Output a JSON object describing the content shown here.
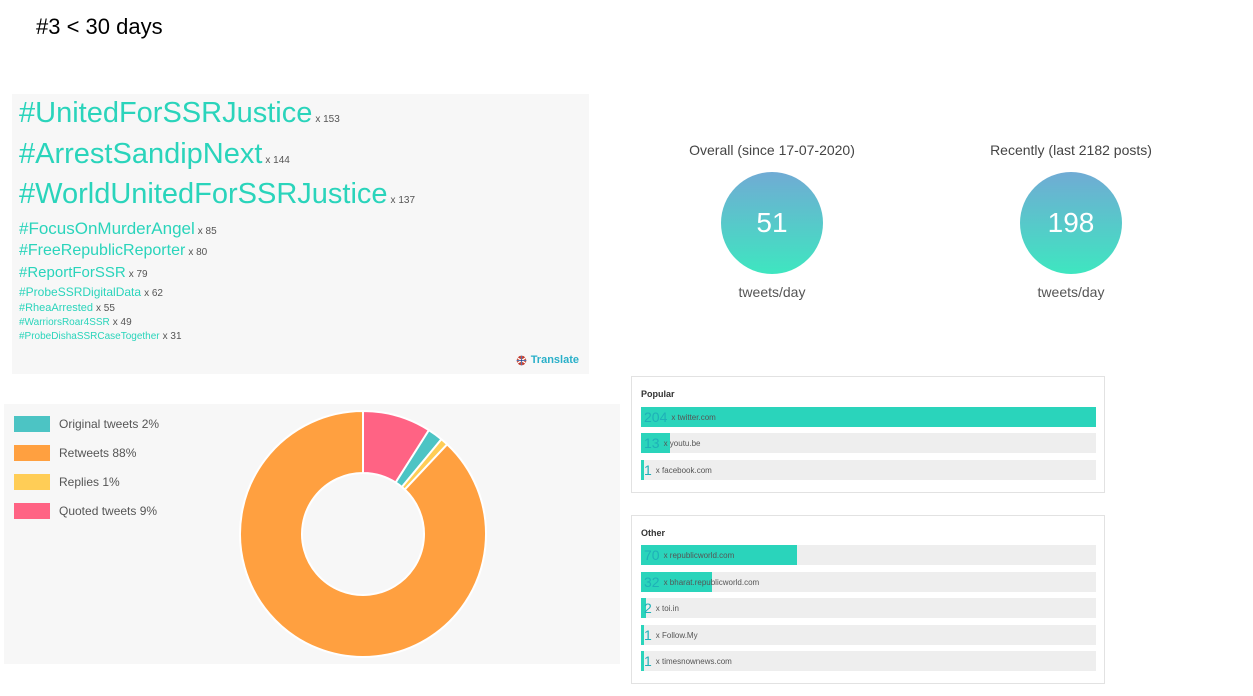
{
  "heading": "#3 < 30 days",
  "hashtags": [
    {
      "tag": "#UnitedForSSRJustice",
      "count": "x 153"
    },
    {
      "tag": "#ArrestSandipNext",
      "count": "x 144"
    },
    {
      "tag": "#WorldUnitedForSSRJustice",
      "count": "x 137"
    },
    {
      "tag": "#FocusOnMurderAngel",
      "count": "x 85"
    },
    {
      "tag": "#FreeRepublicReporter",
      "count": "x 80"
    },
    {
      "tag": "#ReportForSSR",
      "count": "x 79"
    },
    {
      "tag": "#ProbeSSRDigitalData",
      "count": "x 62"
    },
    {
      "tag": "#RheaArrested",
      "count": "x 55"
    },
    {
      "tag": "#WarriorsRoar4SSR",
      "count": "x 49"
    },
    {
      "tag": "#ProbeDishaSSRCaseTogether",
      "count": "x 31"
    }
  ],
  "translate_label": "Translate",
  "translate_icon": "globe-icon",
  "stats": {
    "overall": {
      "title": "Overall (since 17-07-2020)",
      "value": "51",
      "unit": "tweets/day"
    },
    "recent": {
      "title": "Recently (last 2182 posts)",
      "value": "198",
      "unit": "tweets/day"
    }
  },
  "tweet_types": {
    "legend": [
      {
        "label": "Original tweets 2%",
        "color": "#4cc4c4",
        "percent": 2
      },
      {
        "label": "Retweets 88%",
        "color": "#ffa040",
        "percent": 88
      },
      {
        "label": "Replies 1%",
        "color": "#ffcd56",
        "percent": 1
      },
      {
        "label": "Quoted tweets 9%",
        "color": "#ff6384",
        "percent": 9
      }
    ]
  },
  "domains": {
    "popular": {
      "title": "Popular",
      "items": [
        {
          "count": "204",
          "domain": "x twitter.com",
          "fraction": 1.0
        },
        {
          "count": "13",
          "domain": "x youtu.be",
          "fraction": 0.064
        },
        {
          "count": "1",
          "domain": "x facebook.com",
          "fraction": 0.005
        }
      ]
    },
    "other": {
      "title": "Other",
      "items": [
        {
          "count": "70",
          "domain": "x republicworld.com",
          "fraction": 0.343
        },
        {
          "count": "32",
          "domain": "x bharat.republicworld.com",
          "fraction": 0.157
        },
        {
          "count": "2",
          "domain": "x toi.in",
          "fraction": 0.01
        },
        {
          "count": "1",
          "domain": "x Follow.My",
          "fraction": 0.005
        },
        {
          "count": "1",
          "domain": "x timesnownews.com",
          "fraction": 0.005
        }
      ]
    }
  }
}
